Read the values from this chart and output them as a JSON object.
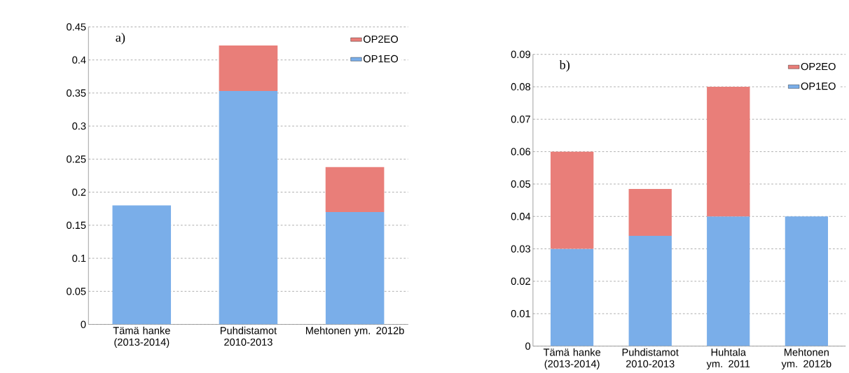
{
  "chart_data": [
    {
      "type": "bar",
      "stacked": true,
      "annotations": [
        "a)"
      ],
      "categories": [
        "Tämä hanke (2013-2014)",
        "Puhdistamot 2010-2013",
        "Mehtonen ym. 2012b"
      ],
      "series": [
        {
          "name": "OP1EO",
          "color": "#7aaee9",
          "values": [
            0.18,
            0.353,
            0.17
          ]
        },
        {
          "name": "OP2EO",
          "color": "#e97e79",
          "values": [
            null,
            0.069,
            0.068
          ]
        }
      ],
      "ylim": [
        0,
        0.45
      ],
      "yticks": [
        0,
        0.05,
        0.1,
        0.15,
        0.2,
        0.25,
        0.3,
        0.35,
        0.4,
        0.45
      ],
      "grid": "y",
      "legend": "top right"
    },
    {
      "type": "bar",
      "stacked": true,
      "annotations": [
        "b)"
      ],
      "categories": [
        "Tämä hanke (2013-2014)",
        "Puhdistamot 2010-2013",
        "Huhtala ym. 2011",
        "Mehtonen ym. 2012b"
      ],
      "series": [
        {
          "name": "OP1EO",
          "color": "#7aaee9",
          "values": [
            0.03,
            0.034,
            0.04,
            0.04
          ]
        },
        {
          "name": "OP2EO",
          "color": "#e97e79",
          "values": [
            0.03,
            0.0145,
            0.04,
            null
          ]
        }
      ],
      "ylim": [
        0,
        0.09
      ],
      "yticks": [
        0,
        0.01,
        0.02,
        0.03,
        0.04,
        0.05,
        0.06,
        0.07,
        0.08,
        0.09
      ],
      "grid": "y",
      "legend": "top right"
    }
  ]
}
